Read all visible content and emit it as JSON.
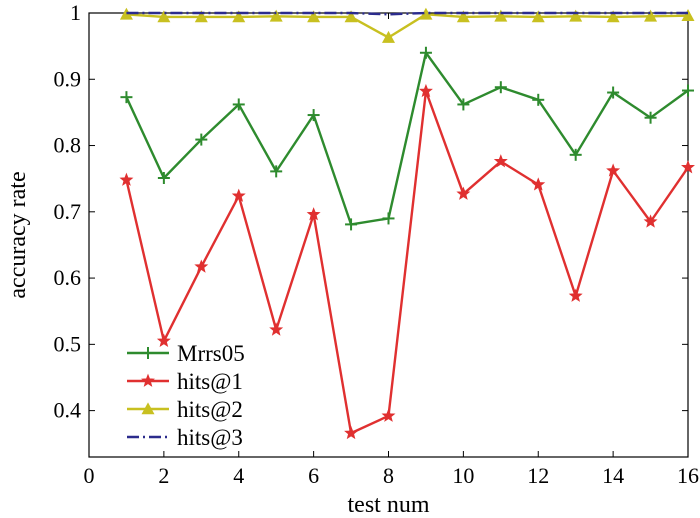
{
  "chart_data": {
    "type": "line",
    "xlabel": "test num",
    "ylabel": "accuracy rate",
    "xlim": [
      0,
      16
    ],
    "ylim": [
      0.33,
      1.0
    ],
    "xticks": [
      0,
      2,
      4,
      6,
      8,
      10,
      12,
      14,
      16
    ],
    "xtick_labels": [
      "0",
      "2",
      "4",
      "6",
      "8",
      "10",
      "12",
      "14",
      "16"
    ],
    "yticks": [
      0.4,
      0.5,
      0.6,
      0.7,
      0.8,
      0.9,
      1.0
    ],
    "ytick_labels": [
      "0.4",
      "0.5",
      "0.6",
      "0.7",
      "0.8",
      "0.9",
      "1"
    ],
    "grid": false,
    "legend_position": "bottom-left",
    "x": [
      1,
      2,
      3,
      4,
      5,
      6,
      7,
      8,
      9,
      10,
      11,
      12,
      13,
      14,
      15,
      16
    ],
    "series": [
      {
        "name": "Mrrs05",
        "color": "#2e8b2e",
        "marker": "plus",
        "dash": "solid",
        "values": [
          0.873,
          0.751,
          0.809,
          0.862,
          0.761,
          0.846,
          0.681,
          0.69,
          0.94,
          0.862,
          0.888,
          0.869,
          0.786,
          0.88,
          0.842,
          0.883
        ]
      },
      {
        "name": "hits@1",
        "color": "#e03030",
        "marker": "star",
        "dash": "solid",
        "values": [
          0.748,
          0.505,
          0.617,
          0.724,
          0.522,
          0.696,
          0.366,
          0.392,
          0.882,
          0.727,
          0.776,
          0.741,
          0.573,
          0.762,
          0.685,
          0.767
        ]
      },
      {
        "name": "hits@2",
        "color": "#c8c020",
        "marker": "triangle",
        "dash": "solid",
        "values": [
          0.998,
          0.994,
          0.994,
          0.994,
          0.995,
          0.994,
          0.994,
          0.963,
          0.998,
          0.994,
          0.995,
          0.994,
          0.995,
          0.994,
          0.995,
          0.996
        ]
      },
      {
        "name": "hits@3",
        "color": "#2b2b8c",
        "marker": "none",
        "dash": "dashdot",
        "values": [
          1.0,
          1.0,
          1.0,
          1.0,
          1.0,
          1.0,
          1.0,
          0.998,
          1.0,
          1.0,
          1.0,
          1.0,
          1.0,
          1.0,
          1.0,
          1.0
        ]
      }
    ]
  }
}
